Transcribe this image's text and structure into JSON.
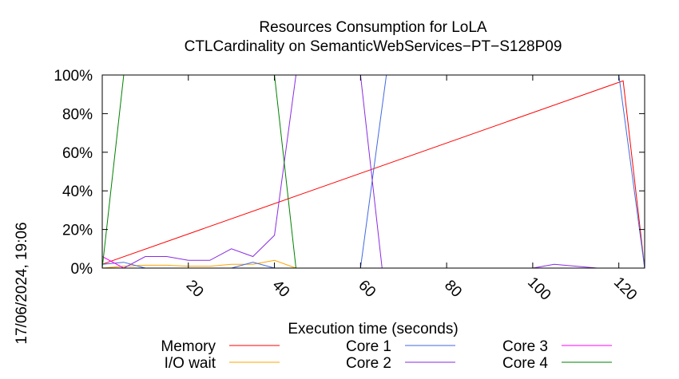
{
  "chart_data": {
    "type": "line",
    "title": "Resources Consumption for LoLA",
    "subtitle": "CTLCardinality on SemanticWebServices−PT−S128P09",
    "xlabel": "Execution time (seconds)",
    "ylabel": "",
    "timestamp": "17/06/2024, 19:06",
    "xlim": [
      0,
      126
    ],
    "ylim": [
      0,
      100
    ],
    "x_ticks": [
      20,
      40,
      60,
      80,
      100,
      120
    ],
    "y_ticks": [
      0,
      20,
      40,
      60,
      80,
      100
    ],
    "y_tick_labels": [
      "0%",
      "20%",
      "40%",
      "60%",
      "80%",
      "100%"
    ],
    "grid": false,
    "legend_position": "bottom",
    "series": [
      {
        "name": "Memory",
        "color": "#ff0000",
        "points": [
          [
            0,
            2
          ],
          [
            121,
            97
          ],
          [
            126,
            0
          ]
        ]
      },
      {
        "name": "I/O wait",
        "color": "#ffa500",
        "points": [
          [
            0,
            0
          ],
          [
            5,
            1
          ],
          [
            10,
            1.5
          ],
          [
            15,
            1.5
          ],
          [
            20,
            1
          ],
          [
            25,
            1
          ],
          [
            30,
            2
          ],
          [
            35,
            2
          ],
          [
            40,
            4
          ],
          [
            45,
            0
          ],
          [
            126,
            0
          ]
        ]
      },
      {
        "name": "Core 1",
        "color": "#4169e1",
        "points": [
          [
            0,
            2
          ],
          [
            5,
            3
          ],
          [
            10,
            0
          ],
          [
            30,
            0
          ],
          [
            35,
            3
          ],
          [
            40,
            0
          ],
          [
            60,
            0
          ],
          [
            66,
            100
          ],
          [
            120,
            100
          ],
          [
            126,
            0
          ]
        ]
      },
      {
        "name": "Core 2",
        "color": "#8a2be2",
        "points": [
          [
            0,
            0
          ],
          [
            5,
            0
          ],
          [
            10,
            6
          ],
          [
            15,
            6
          ],
          [
            20,
            4
          ],
          [
            25,
            4
          ],
          [
            30,
            10
          ],
          [
            35,
            6
          ],
          [
            40,
            17
          ],
          [
            45,
            100
          ],
          [
            60,
            100
          ],
          [
            65,
            0
          ],
          [
            100,
            0
          ],
          [
            105,
            2
          ],
          [
            110,
            1
          ],
          [
            115,
            0
          ],
          [
            126,
            0
          ]
        ]
      },
      {
        "name": "Core 3",
        "color": "#ff00ff",
        "points": [
          [
            0,
            6
          ],
          [
            5,
            0
          ],
          [
            126,
            0
          ]
        ]
      },
      {
        "name": "Core 4",
        "color": "#008000",
        "points": [
          [
            0,
            0
          ],
          [
            5,
            100
          ],
          [
            40,
            100
          ],
          [
            45,
            0
          ],
          [
            126,
            0
          ]
        ]
      }
    ]
  }
}
